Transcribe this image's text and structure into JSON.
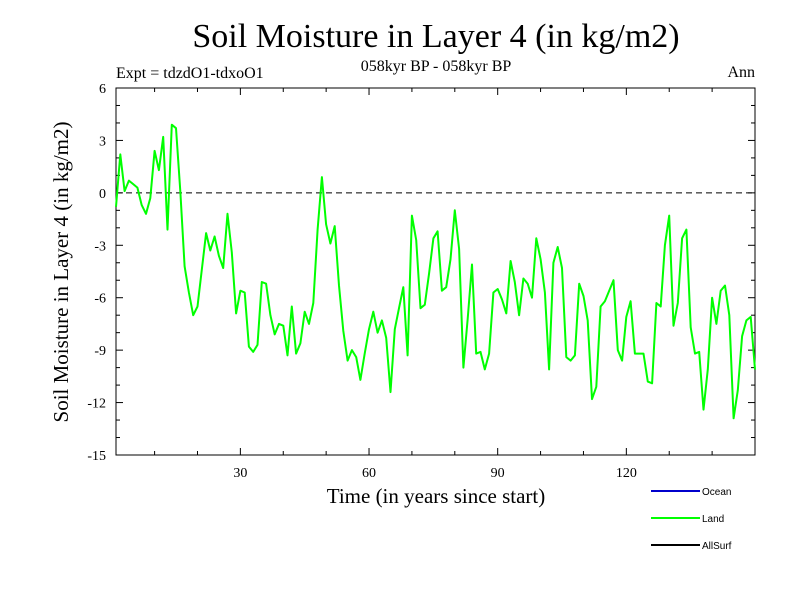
{
  "chart_data": {
    "type": "line",
    "title": "Soil Moisture in Layer 4 (in kg/m2)",
    "subtitle": "058kyr BP - 058kyr BP",
    "experiment": "Expt = tdzdO1-tdxoO1",
    "season": "Ann",
    "xlabel": "Time (in years since start)",
    "ylabel": "Soil Moisture in Layer 4 (in kg/m2)",
    "xlim": [
      1,
      150
    ],
    "ylim": [
      -15,
      6
    ],
    "xticks": [
      30,
      60,
      90,
      120
    ],
    "yticks": [
      6,
      3,
      0,
      -3,
      -6,
      -9,
      -12,
      -15
    ],
    "zero_line": true,
    "legend": [
      {
        "name": "Ocean",
        "label": "Ocean",
        "color": "#0000cc"
      },
      {
        "name": "Land",
        "label": "Land",
        "color": "#00ff00"
      },
      {
        "name": "AllSurf",
        "label": "AllSurf",
        "color": "#000000"
      }
    ],
    "series": [
      {
        "name": "Land",
        "color": "#00ff00",
        "x": [
          1,
          2,
          3,
          4,
          5,
          6,
          7,
          8,
          9,
          10,
          11,
          12,
          13,
          14,
          15,
          16,
          17,
          18,
          19,
          20,
          21,
          22,
          23,
          24,
          25,
          26,
          27,
          28,
          29,
          30,
          31,
          32,
          33,
          34,
          35,
          36,
          37,
          38,
          39,
          40,
          41,
          42,
          43,
          44,
          45,
          46,
          47,
          48,
          49,
          50,
          51,
          52,
          53,
          54,
          55,
          56,
          57,
          58,
          59,
          60,
          61,
          62,
          63,
          64,
          65,
          66,
          67,
          68,
          69,
          70,
          71,
          72,
          73,
          74,
          75,
          76,
          77,
          78,
          79,
          80,
          81,
          82,
          83,
          84,
          85,
          86,
          87,
          88,
          89,
          90,
          91,
          92,
          93,
          94,
          95,
          96,
          97,
          98,
          99,
          100,
          101,
          102,
          103,
          104,
          105,
          106,
          107,
          108,
          109,
          110,
          111,
          112,
          113,
          114,
          115,
          116,
          117,
          118,
          119,
          120,
          121,
          122,
          123,
          124,
          125,
          126,
          127,
          128,
          129,
          130,
          131,
          132,
          133,
          134,
          135,
          136,
          137,
          138,
          139,
          140,
          141,
          142,
          143,
          144,
          145,
          146,
          147,
          148,
          149,
          150
        ],
        "values": [
          -0.8,
          2.2,
          0.1,
          0.7,
          0.5,
          0.3,
          -0.7,
          -1.2,
          -0.3,
          2.4,
          1.3,
          3.2,
          -2.1,
          3.9,
          3.7,
          0.1,
          -4.2,
          -5.7,
          -7.0,
          -6.5,
          -4.4,
          -2.3,
          -3.3,
          -2.5,
          -3.6,
          -4.3,
          -1.2,
          -3.4,
          -6.9,
          -5.6,
          -5.7,
          -8.8,
          -9.1,
          -8.7,
          -5.1,
          -5.2,
          -7.0,
          -8.1,
          -7.5,
          -7.6,
          -9.3,
          -6.5,
          -9.2,
          -8.6,
          -6.8,
          -7.5,
          -6.3,
          -2.1,
          0.9,
          -1.8,
          -2.9,
          -1.9,
          -5.3,
          -7.9,
          -9.6,
          -9.0,
          -9.4,
          -10.7,
          -9.2,
          -7.8,
          -6.8,
          -8.0,
          -7.3,
          -8.3,
          -11.4,
          -7.8,
          -6.6,
          -5.4,
          -9.3,
          -1.3,
          -2.7,
          -6.6,
          -6.4,
          -4.6,
          -2.6,
          -2.2,
          -5.6,
          -5.4,
          -3.8,
          -1.0,
          -3.2,
          -10.0,
          -7.2,
          -4.1,
          -9.2,
          -9.1,
          -10.1,
          -9.2,
          -5.7,
          -5.5,
          -6.1,
          -6.9,
          -3.9,
          -5.1,
          -7.0,
          -4.9,
          -5.2,
          -6.0,
          -2.6,
          -3.8,
          -5.7,
          -10.1,
          -4.0,
          -3.1,
          -4.3,
          -9.4,
          -9.6,
          -9.3,
          -5.2,
          -5.9,
          -7.3,
          -11.8,
          -11.1,
          -6.5,
          -6.2,
          -5.6,
          -5.0,
          -9.0,
          -9.6,
          -7.1,
          -6.2,
          -9.2,
          -9.2,
          -9.2,
          -10.8,
          -10.9,
          -6.3,
          -6.5,
          -3.0,
          -1.3,
          -7.6,
          -6.3,
          -2.6,
          -2.1,
          -7.7,
          -9.2,
          -9.1,
          -12.4,
          -10.1,
          -6.0,
          -7.5,
          -5.6,
          -5.3,
          -7.0,
          -12.9,
          -11.3,
          -8.2,
          -7.3,
          -7.1,
          -10.1
        ]
      }
    ]
  }
}
